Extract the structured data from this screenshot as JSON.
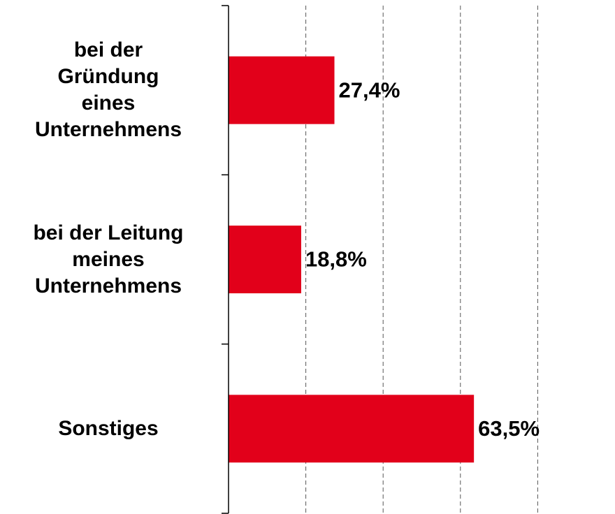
{
  "chart_data": {
    "type": "bar",
    "orientation": "horizontal",
    "categories": [
      "bei der\nGründung\neines\nUnternehmens",
      "bei der Leitung\nmeines\nUnternehmens",
      "Sonstiges"
    ],
    "values": [
      27.4,
      18.8,
      63.5
    ],
    "value_labels": [
      "27,4%",
      "18,8%",
      "63,5%"
    ],
    "color": "#e2001a",
    "xlim": [
      0,
      100
    ],
    "xticks": [
      20,
      40,
      60,
      80
    ],
    "grid": true
  }
}
